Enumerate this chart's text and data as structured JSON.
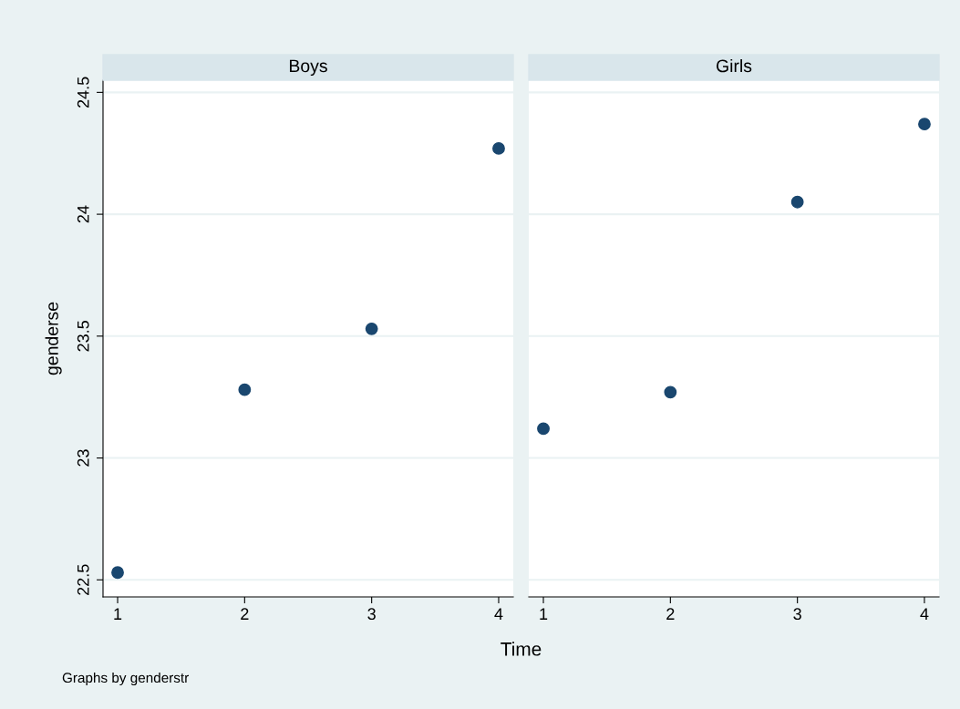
{
  "chart_data": [
    {
      "type": "scatter",
      "title": "Boys",
      "ylabel": "genderse",
      "xlabel": "Time",
      "annotations": [
        "Graphs by genderstr"
      ],
      "x": [
        1,
        2,
        3,
        4
      ],
      "series": [
        {
          "color": "#1a476f",
          "values": [
            22.53,
            23.28,
            23.53,
            24.27
          ]
        }
      ],
      "xlim": [
        0.885,
        4.115
      ],
      "xticks": [
        1,
        2,
        3,
        4
      ],
      "ylim": [
        22.43,
        24.55
      ],
      "yticks": [
        22.5,
        23,
        23.5,
        24,
        24.5
      ],
      "grid": "y",
      "marker": "circle"
    },
    {
      "type": "scatter",
      "title": "Girls",
      "x": [
        1,
        2,
        3,
        4
      ],
      "series": [
        {
          "color": "#1a476f",
          "values": [
            23.12,
            23.27,
            24.05,
            24.37
          ]
        }
      ],
      "xlim": [
        0.885,
        4.115
      ],
      "xticks": [
        1,
        2,
        3,
        4
      ],
      "ylim": [
        22.43,
        24.55
      ],
      "yticks": [
        22.5,
        23,
        23.5,
        24,
        24.5
      ],
      "grid": "y",
      "marker": "circle",
      "tick_labels": "x"
    }
  ]
}
